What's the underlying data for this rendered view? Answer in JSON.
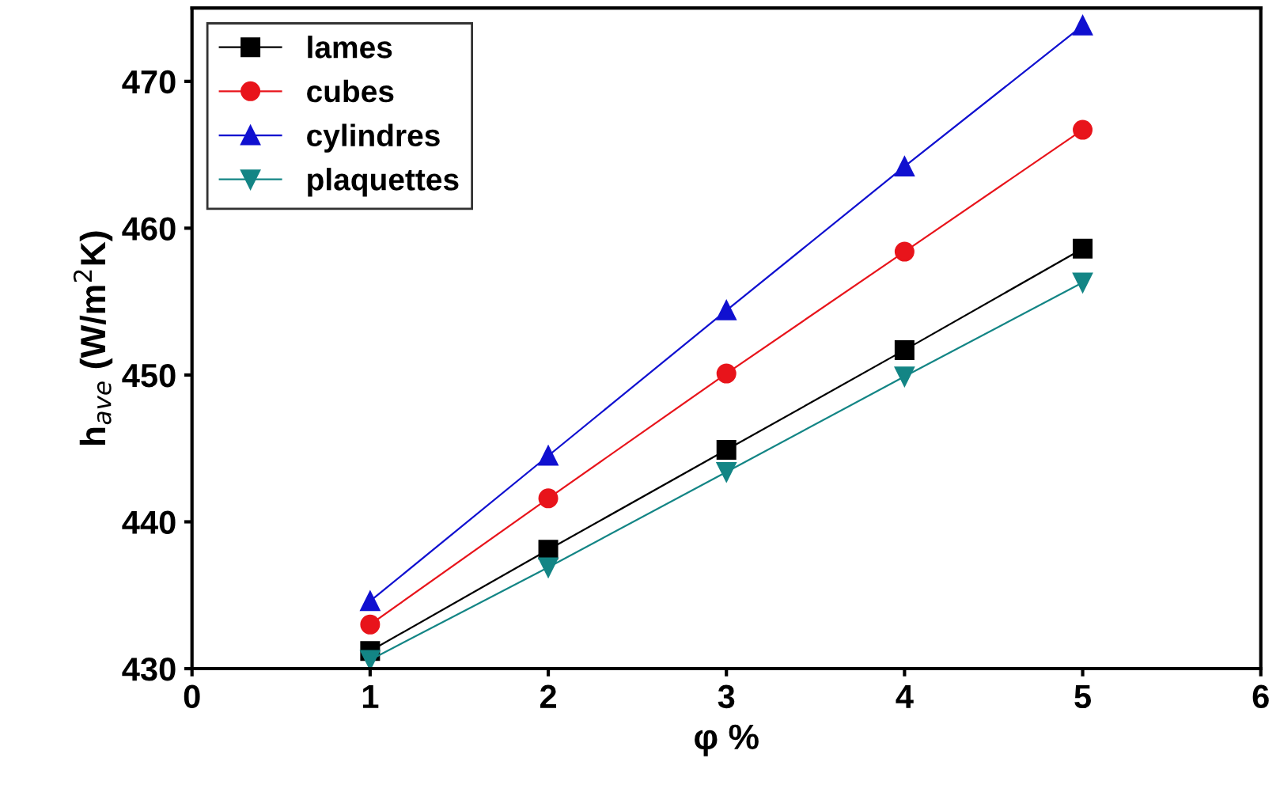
{
  "chart_data": {
    "type": "line",
    "xlabel": "φ %",
    "ylabel": "h$_{ave}$ (W/m$^{2}$K)",
    "x": [
      1,
      2,
      3,
      4,
      5
    ],
    "series": [
      {
        "name": "lames",
        "color": "#000000",
        "marker": "square",
        "values": [
          431.2,
          438.1,
          444.9,
          451.7,
          458.6
        ]
      },
      {
        "name": "cubes",
        "color": "#e8141b",
        "marker": "circle",
        "values": [
          433.0,
          441.6,
          450.1,
          458.4,
          466.7
        ]
      },
      {
        "name": "cylindres",
        "color": "#1010d0",
        "marker": "triangle",
        "values": [
          434.6,
          444.5,
          454.4,
          464.2,
          473.8
        ]
      },
      {
        "name": "plaquettes",
        "color": "#138585",
        "marker": "triangle_down",
        "values": [
          430.6,
          436.9,
          443.4,
          449.9,
          456.3
        ]
      }
    ],
    "xlim": [
      0,
      6
    ],
    "xticks": [
      0,
      1,
      2,
      3,
      4,
      5,
      6
    ],
    "ylim": [
      430,
      475
    ],
    "yticks": [
      430,
      440,
      450,
      460,
      470
    ],
    "grid": false,
    "legend": "top left",
    "line_style": "solid"
  }
}
